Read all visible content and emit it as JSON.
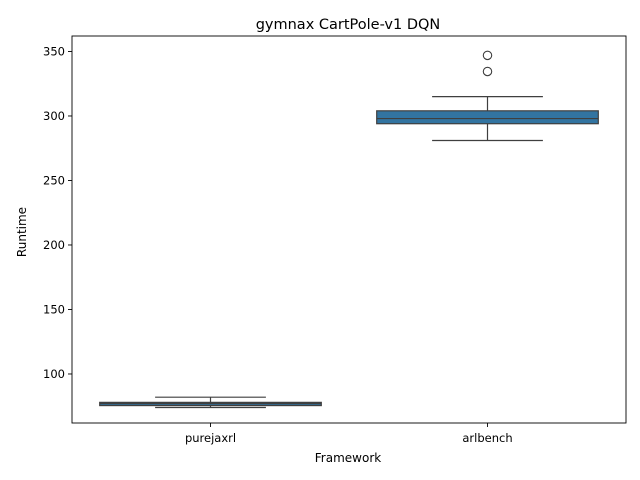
{
  "chart_data": {
    "type": "box",
    "title": "gymnax CartPole-v1 DQN",
    "xlabel": "Framework",
    "ylabel": "Runtime",
    "categories": [
      "purejaxrl",
      "arlbench"
    ],
    "yticks": [
      100,
      150,
      200,
      250,
      300,
      350
    ],
    "ylim": [
      62,
      362
    ],
    "grid": false,
    "legend": "none",
    "box_color": "#3274a1",
    "boxes": [
      {
        "category": "purejaxrl",
        "whisker_low": 74,
        "q1": 75.5,
        "median": 77,
        "q3": 78,
        "whisker_high": 82,
        "outliers": []
      },
      {
        "category": "arlbench",
        "whisker_low": 281,
        "q1": 294,
        "median": 298,
        "q3": 304,
        "whisker_high": 315,
        "outliers": [
          334.5,
          347
        ]
      }
    ]
  }
}
